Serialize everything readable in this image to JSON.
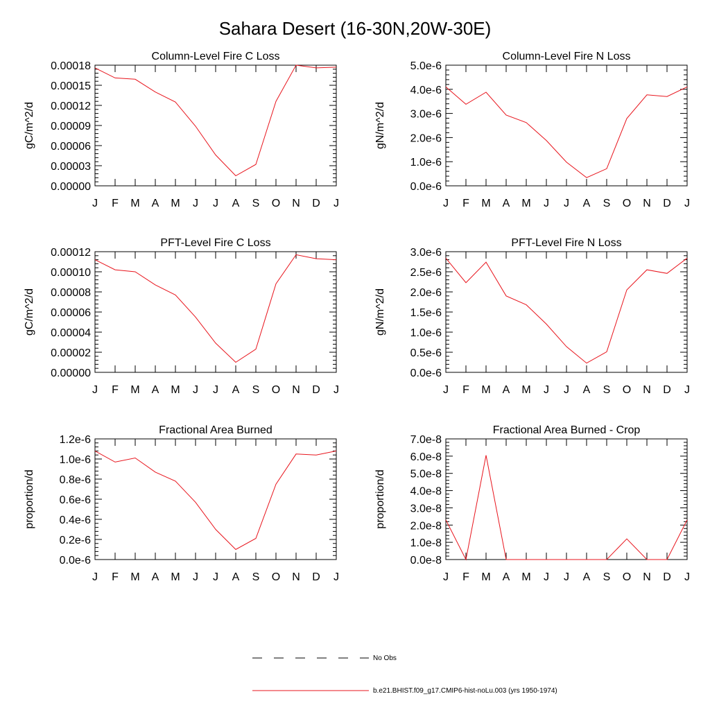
{
  "page_title": "Sahara Desert (16-30N,20W-30E)",
  "colors": {
    "series": "#e8141c",
    "axis": "#000000"
  },
  "months": [
    "J",
    "F",
    "M",
    "A",
    "M",
    "J",
    "J",
    "A",
    "S",
    "O",
    "N",
    "D",
    "J"
  ],
  "legend": {
    "entries": [
      {
        "label": "No Obs",
        "style": "dashed",
        "color": "#000000"
      },
      {
        "label": "b.e21.BHIST.f09_g17.CMIP6-hist-noLu.003 (yrs 1950-1974)",
        "style": "solid",
        "color": "#e8141c"
      }
    ]
  },
  "chart_data": [
    {
      "type": "line",
      "title": "Column-Level Fire C Loss",
      "ylabel": "gC/m^2/d",
      "ylim": [
        0,
        0.00018
      ],
      "yticks": [
        0,
        3e-05,
        6e-05,
        9e-05,
        0.00012,
        0.00015,
        0.00018
      ],
      "ytick_labels": [
        "0.00000",
        "0.00003",
        "0.00006",
        "0.00009",
        "0.00012",
        "0.00015",
        "0.00018"
      ],
      "x": [
        "J",
        "F",
        "M",
        "A",
        "M",
        "J",
        "J",
        "A",
        "S",
        "O",
        "N",
        "D",
        "J"
      ],
      "values": [
        0.000176,
        0.000161,
        0.000159,
        0.00014,
        0.000125,
        8.9e-05,
        4.6e-05,
        1.5e-05,
        3.2e-05,
        0.000126,
        0.00018,
        0.000176,
        0.000177
      ]
    },
    {
      "type": "line",
      "title": "Column-Level Fire N Loss",
      "ylabel": "gN/m^2/d",
      "ylim": [
        0,
        5e-06
      ],
      "yticks": [
        0,
        1e-06,
        2e-06,
        3e-06,
        4e-06,
        5e-06
      ],
      "ytick_labels": [
        "0.0e-6",
        "1.0e-6",
        "2.0e-6",
        "3.0e-6",
        "4.0e-6",
        "5.0e-6"
      ],
      "x": [
        "J",
        "F",
        "M",
        "A",
        "M",
        "J",
        "J",
        "A",
        "S",
        "O",
        "N",
        "D",
        "J"
      ],
      "values": [
        4.1e-06,
        3.38e-06,
        3.88e-06,
        2.93e-06,
        2.62e-06,
        1.88e-06,
        9.8e-07,
        3.4e-07,
        7.1e-07,
        2.79e-06,
        3.77e-06,
        3.7e-06,
        4.1e-06
      ]
    },
    {
      "type": "line",
      "title": "PFT-Level Fire C Loss",
      "ylabel": "gC/m^2/d",
      "ylim": [
        0,
        0.00012
      ],
      "yticks": [
        0,
        2e-05,
        4e-05,
        6e-05,
        8e-05,
        0.0001,
        0.00012
      ],
      "ytick_labels": [
        "0.00000",
        "0.00002",
        "0.00004",
        "0.00006",
        "0.00008",
        "0.00010",
        "0.00012"
      ],
      "x": [
        "J",
        "F",
        "M",
        "A",
        "M",
        "J",
        "J",
        "A",
        "S",
        "O",
        "N",
        "D",
        "J"
      ],
      "values": [
        0.000112,
        0.000102,
        0.0001,
        8.7e-05,
        7.7e-05,
        5.5e-05,
        2.9e-05,
        1e-05,
        2.3e-05,
        8.8e-05,
        0.000117,
        0.000113,
        0.000112
      ]
    },
    {
      "type": "line",
      "title": "PFT-Level Fire N Loss",
      "ylabel": "gN/m^2/d",
      "ylim": [
        0,
        3e-06
      ],
      "yticks": [
        0,
        5e-07,
        1e-06,
        1.5e-06,
        2e-06,
        2.5e-06,
        3e-06
      ],
      "ytick_labels": [
        "0.0e-6",
        "0.5e-6",
        "1.0e-6",
        "1.5e-6",
        "2.0e-6",
        "2.5e-6",
        "3.0e-6"
      ],
      "x": [
        "J",
        "F",
        "M",
        "A",
        "M",
        "J",
        "J",
        "A",
        "S",
        "O",
        "N",
        "D",
        "J"
      ],
      "values": [
        2.84e-06,
        2.23e-06,
        2.74e-06,
        1.9e-06,
        1.68e-06,
        1.2e-06,
        6.4e-07,
        2.3e-07,
        5.1e-07,
        2.05e-06,
        2.55e-06,
        2.46e-06,
        2.84e-06
      ]
    },
    {
      "type": "line",
      "title": "Fractional Area Burned",
      "ylabel": "proportion/d",
      "ylim": [
        0,
        1.2e-06
      ],
      "yticks": [
        0,
        2e-07,
        4e-07,
        6e-07,
        8e-07,
        1e-06,
        1.2e-06
      ],
      "ytick_labels": [
        "0.0e-6",
        "0.2e-6",
        "0.4e-6",
        "0.6e-6",
        "0.8e-6",
        "1.0e-6",
        "1.2e-6"
      ],
      "x": [
        "J",
        "F",
        "M",
        "A",
        "M",
        "J",
        "J",
        "A",
        "S",
        "O",
        "N",
        "D",
        "J"
      ],
      "values": [
        1.08e-06,
        9.7e-07,
        1.01e-06,
        8.7e-07,
        7.8e-07,
        5.7e-07,
        3e-07,
        1e-07,
        2.1e-07,
        7.5e-07,
        1.05e-06,
        1.04e-06,
        1.08e-06
      ]
    },
    {
      "type": "line",
      "title": "Fractional Area Burned - Crop",
      "ylabel": "proportion/d",
      "ylim": [
        0,
        7e-08
      ],
      "yticks": [
        0,
        1e-08,
        2e-08,
        3e-08,
        4e-08,
        5e-08,
        6e-08,
        7e-08
      ],
      "ytick_labels": [
        "0.0e-8",
        "1.0e-8",
        "2.0e-8",
        "3.0e-8",
        "4.0e-8",
        "5.0e-8",
        "6.0e-8",
        "7.0e-8"
      ],
      "x": [
        "J",
        "F",
        "M",
        "A",
        "M",
        "J",
        "J",
        "A",
        "S",
        "O",
        "N",
        "D",
        "J"
      ],
      "values": [
        2.3e-08,
        0,
        6.05e-08,
        0,
        0,
        0,
        0,
        0,
        0,
        1.2e-08,
        0,
        0,
        2.3e-08
      ]
    }
  ]
}
